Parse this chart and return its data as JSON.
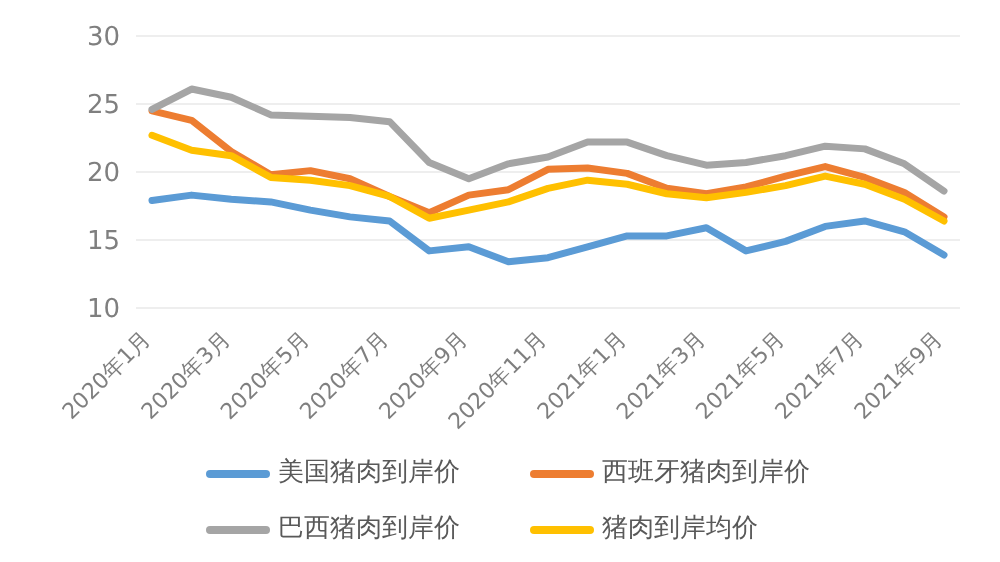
{
  "chart_data": {
    "type": "line",
    "categories": [
      "2020年1月",
      null,
      "2020年3月",
      null,
      "2020年5月",
      null,
      "2020年7月",
      null,
      "2020年9月",
      null,
      "2020年11月",
      null,
      "2021年1月",
      null,
      "2021年3月",
      null,
      "2021年5月",
      null,
      "2021年7月",
      null,
      "2021年9月"
    ],
    "series": [
      {
        "name": "美国猪肉到岸价",
        "color": "#5b9bd5",
        "values": [
          17.9,
          18.3,
          18.0,
          17.8,
          17.2,
          16.7,
          16.4,
          14.2,
          14.5,
          13.4,
          13.7,
          14.5,
          15.3,
          15.3,
          15.9,
          14.2,
          14.9,
          16.0,
          16.4,
          15.6,
          13.9
        ]
      },
      {
        "name": "西班牙猪肉到岸价",
        "color": "#ed7d31",
        "values": [
          24.5,
          23.8,
          21.5,
          19.8,
          20.1,
          19.5,
          18.2,
          17.0,
          18.3,
          18.7,
          20.2,
          20.3,
          19.9,
          18.8,
          18.4,
          18.9,
          19.7,
          20.4,
          19.6,
          18.5,
          16.7
        ]
      },
      {
        "name": "巴西猪肉到岸价",
        "color": "#a5a5a5",
        "values": [
          24.6,
          26.1,
          25.5,
          24.2,
          24.1,
          24.0,
          23.7,
          20.7,
          19.5,
          20.6,
          21.1,
          22.2,
          22.2,
          21.2,
          20.5,
          20.7,
          21.2,
          21.9,
          21.7,
          20.6,
          18.6
        ]
      },
      {
        "name": "猪肉到岸均价",
        "color": "#ffc000",
        "values": [
          22.7,
          21.6,
          21.2,
          19.6,
          19.4,
          19.0,
          18.2,
          16.6,
          17.2,
          17.8,
          18.8,
          19.4,
          19.1,
          18.4,
          18.1,
          18.5,
          19.0,
          19.7,
          19.1,
          18.0,
          16.4
        ]
      }
    ],
    "ylim": [
      10,
      30
    ],
    "yticks": [
      10,
      15,
      20,
      25,
      30
    ],
    "grid": "y",
    "legend": "bottom",
    "marker": "none",
    "line_style": "solid"
  }
}
